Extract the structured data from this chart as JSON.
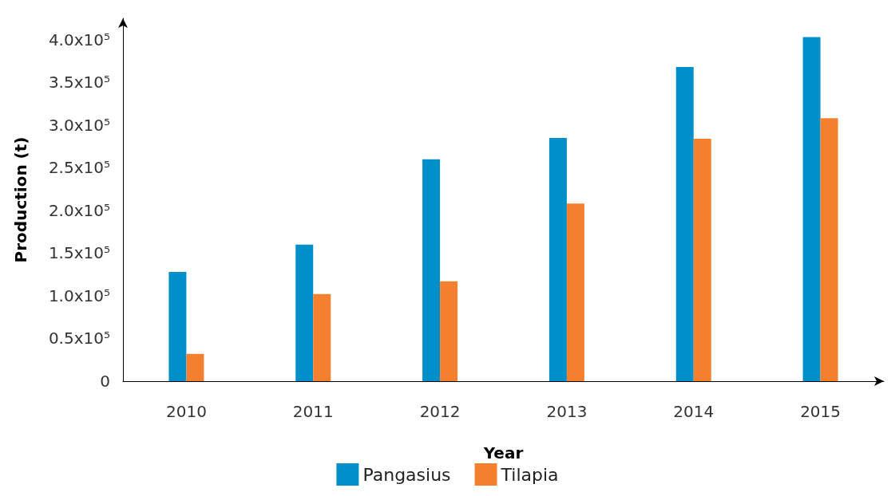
{
  "chart_data": {
    "type": "bar",
    "xlabel": "Year",
    "ylabel": "Production (t)",
    "categories": [
      "2010",
      "2011",
      "2012",
      "2013",
      "2014",
      "2015"
    ],
    "series": [
      {
        "name": "Pangasius",
        "color": "#008fc8",
        "values": [
          128000,
          160000,
          260000,
          285000,
          368000,
          403000
        ]
      },
      {
        "name": "Tilapia",
        "color": "#f47f2f",
        "values": [
          32000,
          102000,
          117000,
          208000,
          284000,
          308000
        ]
      }
    ],
    "ylim": [
      0,
      425000
    ],
    "yticks": [
      0,
      {
        "value": 50000,
        "label": "0.5x10⁵"
      },
      {
        "value": 100000,
        "label": "1.0x10⁵"
      },
      {
        "value": 150000,
        "label": "1.5x10⁵"
      },
      {
        "value": 200000,
        "label": "2.0x10⁵"
      },
      {
        "value": 250000,
        "label": "2.5x10⁵"
      },
      {
        "value": 300000,
        "label": "3.0x10⁵"
      },
      {
        "value": 350000,
        "label": "3.5x10⁵"
      },
      {
        "value": 400000,
        "label": "4.0x10⁵"
      }
    ],
    "grid": false,
    "legend": "bottom"
  }
}
